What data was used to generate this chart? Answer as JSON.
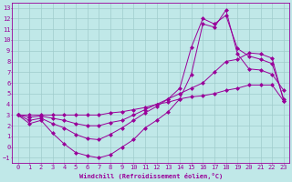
{
  "title": "",
  "xlabel": "Windchill (Refroidissement éolien,°C)",
  "bg_color": "#c0e8e8",
  "grid_color": "#a0cccc",
  "line_color": "#990099",
  "xlim": [
    -0.5,
    23.5
  ],
  "ylim": [
    -1.5,
    13.5
  ],
  "xticks": [
    0,
    1,
    2,
    3,
    4,
    5,
    6,
    7,
    8,
    9,
    10,
    11,
    12,
    13,
    14,
    15,
    16,
    17,
    18,
    19,
    20,
    21,
    22,
    23
  ],
  "yticks": [
    -1,
    0,
    1,
    2,
    3,
    4,
    5,
    6,
    7,
    8,
    9,
    10,
    11,
    12,
    13
  ],
  "line1_x": [
    0,
    1,
    2,
    3,
    4,
    5,
    6,
    7,
    8,
    9,
    10,
    11,
    12,
    13,
    14,
    15,
    16,
    17,
    18,
    19,
    20,
    21,
    22,
    23
  ],
  "line1_y": [
    3.0,
    2.2,
    2.5,
    1.3,
    0.3,
    -0.5,
    -0.8,
    -1.0,
    -0.7,
    0.0,
    0.7,
    1.8,
    2.5,
    3.3,
    4.5,
    6.8,
    11.5,
    11.2,
    12.8,
    8.7,
    7.3,
    7.2,
    6.8,
    5.3
  ],
  "line2_x": [
    0,
    1,
    2,
    3,
    4,
    5,
    6,
    7,
    8,
    9,
    10,
    11,
    12,
    13,
    14,
    15,
    16,
    17,
    18,
    19,
    20,
    21,
    22,
    23
  ],
  "line2_y": [
    3.0,
    2.5,
    2.7,
    2.2,
    1.8,
    1.2,
    0.8,
    0.7,
    1.2,
    1.8,
    2.5,
    3.2,
    3.8,
    4.5,
    5.5,
    9.3,
    12.0,
    11.5,
    12.3,
    9.2,
    8.5,
    8.2,
    7.8,
    4.5
  ],
  "line3_x": [
    0,
    1,
    2,
    3,
    4,
    5,
    6,
    7,
    8,
    9,
    10,
    11,
    12,
    13,
    14,
    15,
    16,
    17,
    18,
    19,
    20,
    21,
    22,
    23
  ],
  "line3_y": [
    3.0,
    2.8,
    2.9,
    2.7,
    2.5,
    2.2,
    2.0,
    2.0,
    2.3,
    2.5,
    3.0,
    3.5,
    4.0,
    4.5,
    5.0,
    5.5,
    6.0,
    7.0,
    8.0,
    8.2,
    8.8,
    8.7,
    8.3,
    4.3
  ],
  "line4_x": [
    0,
    1,
    2,
    3,
    4,
    5,
    6,
    7,
    8,
    9,
    10,
    11,
    12,
    13,
    14,
    15,
    16,
    17,
    18,
    19,
    20,
    21,
    22,
    23
  ],
  "line4_y": [
    3.0,
    3.0,
    3.0,
    3.0,
    3.0,
    3.0,
    3.0,
    3.0,
    3.2,
    3.3,
    3.5,
    3.7,
    4.0,
    4.2,
    4.5,
    4.7,
    4.8,
    5.0,
    5.3,
    5.5,
    5.8,
    5.8,
    5.8,
    4.3
  ],
  "tick_fontsize": 5,
  "xlabel_fontsize": 5
}
